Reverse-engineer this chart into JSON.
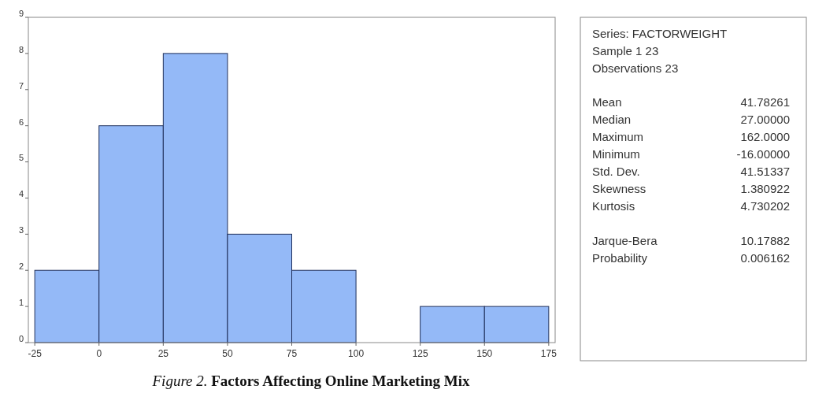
{
  "chart_data": {
    "type": "histogram",
    "title": "Figure 2. Factors Affecting Online Marketing Mix",
    "bins": [
      -25,
      0,
      25,
      50,
      75,
      100,
      125,
      150,
      175
    ],
    "values": [
      2,
      6,
      8,
      3,
      2,
      0,
      1,
      1
    ],
    "color": "#94b9f7",
    "xlim": [
      -27.5,
      177.5
    ],
    "xticks": [
      -25,
      0,
      25,
      50,
      75,
      100,
      125,
      150,
      175
    ],
    "ylim": [
      0,
      9
    ],
    "yticks": [
      0,
      1,
      2,
      3,
      4,
      5,
      6,
      7,
      8,
      9
    ],
    "grid": false,
    "annotations": [
      "Series: FACTORWEIGHT",
      "Sample 1 23",
      "Observations 23",
      "Mean",
      "41.78261",
      "Median",
      "27.00000",
      "Maximum",
      "162.0000",
      "Minimum",
      "-16.00000",
      "Std. Dev.",
      "41.51337",
      "Skewness",
      "1.380922",
      "Kurtosis",
      "4.730202",
      "Jarque-Bera",
      "10.17882",
      "Probability",
      "0.006162"
    ]
  }
}
